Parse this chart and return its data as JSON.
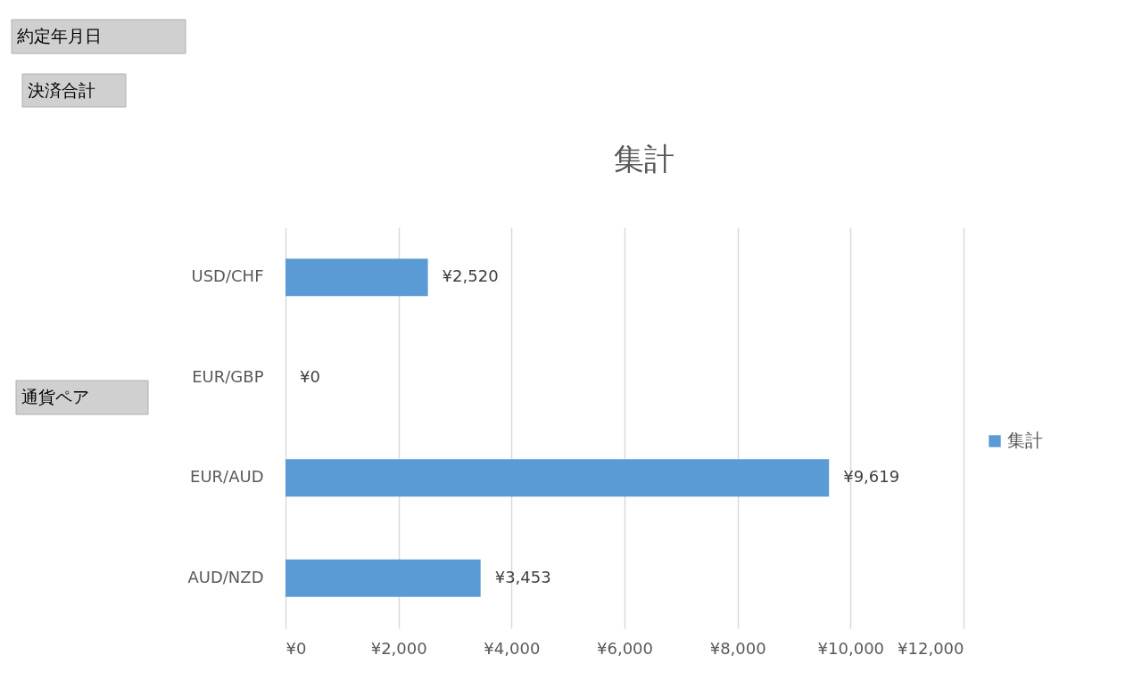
{
  "chart_data": {
    "type": "bar",
    "orientation": "horizontal",
    "title": "集計",
    "categories": [
      "USD/CHF",
      "EUR/GBP",
      "EUR/AUD",
      "AUD/NZD"
    ],
    "series": [
      {
        "name": "集計",
        "color": "#5b9bd5",
        "values": [
          2520,
          0,
          9619,
          3453
        ]
      }
    ],
    "value_labels": [
      "¥2,520",
      "¥0",
      "¥9,619",
      "¥3,453"
    ],
    "xlim": [
      0,
      12000
    ],
    "xticks": [
      {
        "value": 0,
        "label": "¥0"
      },
      {
        "value": 2000,
        "label": "¥2,000"
      },
      {
        "value": 4000,
        "label": "¥4,000"
      },
      {
        "value": 6000,
        "label": "¥6,000"
      },
      {
        "value": 8000,
        "label": "¥8,000"
      },
      {
        "value": 10000,
        "label": "¥10,000"
      },
      {
        "value": 12000,
        "label": "¥12,000"
      }
    ],
    "grid": "x",
    "legend": "right",
    "annotations": [
      "約定年月日",
      "決済合計",
      "通貨ペア"
    ]
  }
}
